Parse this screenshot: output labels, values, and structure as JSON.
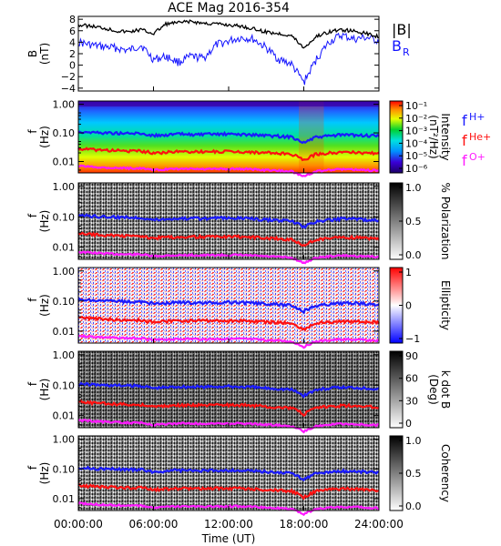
{
  "title": "ACE Mag 2016-354",
  "x_axis": {
    "label": "Time (UT)",
    "ticks": [
      "00:00:00",
      "06:00:00",
      "12:00:00",
      "18:00:00",
      "24:00:00"
    ],
    "range_hours": [
      0,
      24
    ]
  },
  "colors": {
    "B_total": "#000000",
    "B_R": "#1414ff",
    "f_H": "#1a1aff",
    "f_He": "#ff1010",
    "f_O": "#ff1aff"
  },
  "freq_ticks": [
    "1.00",
    "0.10",
    "0.01"
  ],
  "panels": [
    {
      "id": "mag",
      "ylabel": "B",
      "yunit": "(nT)",
      "yticks": [
        "8",
        "6",
        "4",
        "2",
        "0",
        "−2",
        "−4"
      ],
      "legend": [
        "|B|",
        "B_R"
      ]
    },
    {
      "id": "intensity",
      "ylabel": "f",
      "yunit": "(Hz)",
      "colorbar_type": "rainbow",
      "colorbar_title": "Intensity",
      "colorbar_unit": "(nT²/Hz)",
      "colorbar_ticks": [
        "10⁻¹",
        "10⁻²",
        "10⁻³",
        "10⁻⁴",
        "10⁻⁵",
        "10⁻⁶"
      ]
    },
    {
      "id": "polarization",
      "ylabel": "f",
      "yunit": "(Hz)",
      "colorbar_type": "gray",
      "colorbar_title": "% Polarization",
      "colorbar_ticks": [
        "1.0",
        "0.5",
        "0.0"
      ]
    },
    {
      "id": "ellipticity",
      "ylabel": "f",
      "yunit": "(Hz)",
      "colorbar_type": "redwhiteblue",
      "colorbar_title": "Ellipticity",
      "colorbar_ticks": [
        "1",
        "0",
        "−1"
      ]
    },
    {
      "id": "kdotb",
      "ylabel": "f",
      "yunit": "(Hz)",
      "colorbar_type": "gray",
      "colorbar_title": "k dot B",
      "colorbar_unit": "(Deg)",
      "colorbar_ticks": [
        "90",
        "60",
        "30",
        "0"
      ]
    },
    {
      "id": "coherency",
      "ylabel": "f",
      "yunit": "(Hz)",
      "colorbar_type": "gray",
      "colorbar_title": "Coherency",
      "colorbar_ticks": [
        "1.0",
        "0.5",
        "0.0"
      ]
    }
  ],
  "gyro_legend": [
    {
      "base": "f",
      "sub": "H+",
      "color": "#1a1aff"
    },
    {
      "base": "f",
      "sub": "He+",
      "color": "#ff1010"
    },
    {
      "base": "f",
      "sub": "O+",
      "color": "#ff1aff"
    }
  ],
  "chart_data": {
    "type": "line",
    "title": "ACE Mag 2016-354",
    "xlabel": "Time (UT)",
    "xlim": [
      0,
      24
    ],
    "x_hours": [
      0,
      1,
      2,
      3,
      4,
      5,
      6,
      7,
      8,
      9,
      10,
      11,
      12,
      13,
      14,
      15,
      16,
      17,
      18,
      19,
      20,
      21,
      22,
      23,
      24
    ],
    "series": [
      {
        "name": "|B|",
        "values": [
          7.0,
          6.8,
          6.5,
          6.0,
          5.8,
          6.2,
          5.5,
          7.2,
          7.4,
          7.6,
          7.3,
          7.2,
          7.0,
          6.8,
          6.3,
          5.8,
          5.5,
          5.2,
          3.0,
          5.0,
          5.8,
          6.2,
          5.9,
          5.5,
          5.0
        ]
      },
      {
        "name": "B_R",
        "values": [
          4.0,
          3.5,
          3.2,
          3.0,
          2.5,
          3.5,
          1.0,
          1.5,
          0.5,
          1.5,
          1.2,
          3.5,
          4.2,
          4.8,
          4.5,
          3.0,
          1.0,
          0.2,
          -3.0,
          1.0,
          4.0,
          5.2,
          4.5,
          4.8,
          4.2
        ]
      },
      {
        "name": "f_H+",
        "values": [
          0.11,
          0.105,
          0.1,
          0.098,
          0.095,
          0.095,
          0.08,
          0.085,
          0.09,
          0.088,
          0.087,
          0.09,
          0.09,
          0.088,
          0.085,
          0.08,
          0.076,
          0.072,
          0.045,
          0.07,
          0.078,
          0.085,
          0.084,
          0.08,
          0.076
        ]
      },
      {
        "name": "f_He+",
        "values": [
          0.028,
          0.026,
          0.025,
          0.024,
          0.023,
          0.023,
          0.02,
          0.021,
          0.022,
          0.022,
          0.022,
          0.022,
          0.022,
          0.022,
          0.021,
          0.02,
          0.019,
          0.018,
          0.011,
          0.018,
          0.02,
          0.021,
          0.021,
          0.02,
          0.019
        ]
      },
      {
        "name": "f_O+",
        "values": [
          0.007,
          0.0066,
          0.0062,
          0.006,
          0.0058,
          0.0058,
          0.005,
          0.0053,
          0.0055,
          0.0055,
          0.0054,
          0.0055,
          0.0055,
          0.0055,
          0.0053,
          0.005,
          0.0048,
          0.0045,
          0.003,
          0.0045,
          0.005,
          0.0053,
          0.0052,
          0.005,
          0.0048
        ]
      }
    ],
    "mag_ylim": [
      -4.5,
      8.5
    ],
    "freq_ylim_log": [
      0.004,
      1.3
    ]
  }
}
